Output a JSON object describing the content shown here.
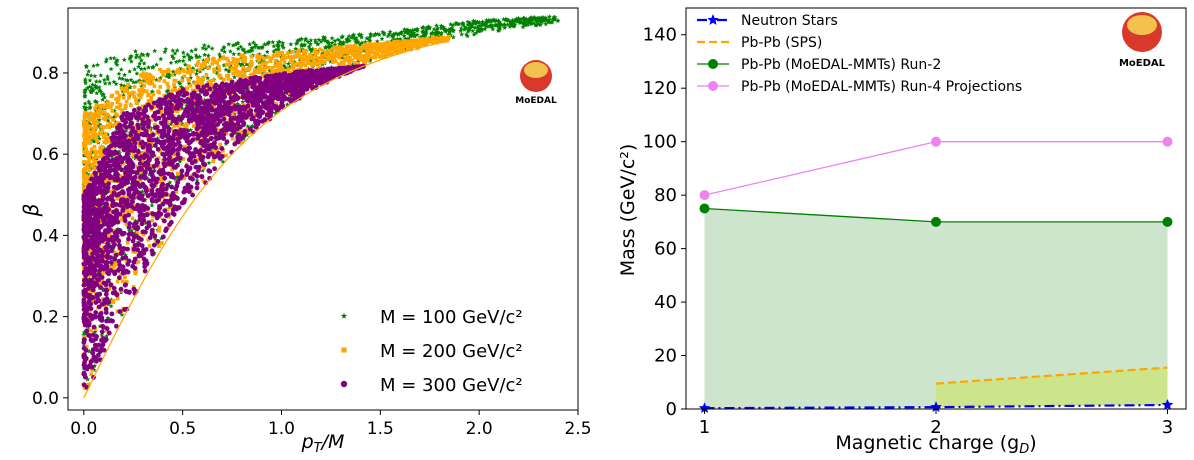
{
  "chart_data": [
    {
      "type": "scatter",
      "xlabel": "p_T/M",
      "ylabel": "β",
      "xlim": [
        -0.08,
        2.5
      ],
      "ylim": [
        -0.03,
        0.96
      ],
      "xticks": [
        0.0,
        0.5,
        1.0,
        1.5,
        2.0,
        2.5
      ],
      "xtick_labels": [
        "0.0",
        "0.5",
        "1.0",
        "1.5",
        "2.0",
        "2.5"
      ],
      "yticks": [
        0.0,
        0.2,
        0.4,
        0.6,
        0.8
      ],
      "ytick_labels": [
        "0.0",
        "0.2",
        "0.4",
        "0.6",
        "0.8"
      ],
      "grid": false,
      "legend_position": "bottom-right",
      "logo_text": "MoEDAL",
      "series": [
        {
          "name": "M = 100 GeV/c²",
          "color": "#008000",
          "marker": "star",
          "envelope": {
            "lower": "beta = x/sqrt(1+x^2)",
            "xmax": 2.4,
            "upper_at_x": [
              [
                0.0,
                0.82
              ],
              [
                0.3,
                0.86
              ],
              [
                1.0,
                0.88
              ],
              [
                1.5,
                0.9
              ],
              [
                2.0,
                0.93
              ],
              [
                2.4,
                0.94
              ]
            ]
          }
        },
        {
          "name": "M = 200 GeV/c²",
          "color": "#ffa500",
          "marker": "square",
          "envelope": {
            "lower": "beta = x/sqrt(1+x^2)",
            "xmax": 1.85,
            "upper_at_x": [
              [
                0.0,
                0.7
              ],
              [
                0.3,
                0.8
              ],
              [
                0.7,
                0.84
              ],
              [
                1.2,
                0.86
              ],
              [
                1.85,
                0.89
              ]
            ]
          }
        },
        {
          "name": "M = 300 GeV/c²",
          "color": "#800080",
          "marker": "circle",
          "envelope": {
            "lower": "beta = x/sqrt(1+x^2)",
            "xmax": 1.5,
            "upper_at_x": [
              [
                0.0,
                0.5
              ],
              [
                0.2,
                0.7
              ],
              [
                0.5,
                0.76
              ],
              [
                1.0,
                0.8
              ],
              [
                1.5,
                0.82
              ]
            ]
          }
        }
      ]
    },
    {
      "type": "line",
      "xlabel": "Magnetic charge (g_D)",
      "ylabel": "Mass (GeV/c²)",
      "xlim": [
        0.92,
        3.08
      ],
      "ylim": [
        0,
        150
      ],
      "xticks": [
        1,
        2,
        3
      ],
      "xtick_labels": [
        "1",
        "2",
        "3"
      ],
      "yticks": [
        0,
        20,
        40,
        60,
        80,
        100,
        120,
        140
      ],
      "ytick_labels": [
        "0",
        "20",
        "40",
        "60",
        "80",
        "100",
        "120",
        "140"
      ],
      "grid": false,
      "legend_position": "top-left",
      "logo_text": "MoEDAL",
      "series": [
        {
          "name": "Neutron Stars",
          "color": "#0000ff",
          "style": "dash-dot",
          "marker": "star",
          "x": [
            1,
            2,
            3
          ],
          "y": [
            0.3,
            0.7,
            1.5
          ]
        },
        {
          "name": "Pb-Pb (SPS)",
          "color": "#ffa500",
          "style": "dashed",
          "marker": "none",
          "x": [
            2,
            3
          ],
          "y": [
            9.5,
            15.5
          ]
        },
        {
          "name": "Pb-Pb (MoEDAL-MMTs) Run-2",
          "color": "#008000",
          "style": "solid",
          "marker": "circle",
          "x": [
            1,
            2,
            3
          ],
          "y": [
            75,
            70,
            70
          ]
        },
        {
          "name": "Pb-Pb (MoEDAL-MMTs) Run-4 Projections",
          "color": "#ee82ee",
          "style": "solid",
          "marker": "circle",
          "x": [
            1,
            2,
            3
          ],
          "y": [
            80,
            100,
            100
          ]
        }
      ],
      "fills": [
        {
          "between": [
            "Neutron Stars",
            "Pb-Pb (MoEDAL-MMTs) Run-2"
          ],
          "color": "#cde5cd"
        },
        {
          "between": [
            "Neutron Stars",
            "Pb-Pb (SPS)"
          ],
          "color": "#cde58a"
        }
      ]
    }
  ]
}
